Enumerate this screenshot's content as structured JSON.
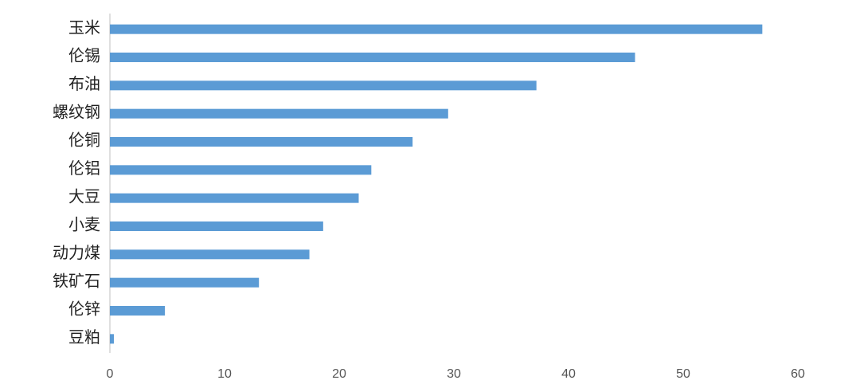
{
  "chart_data": {
    "type": "bar",
    "orientation": "horizontal",
    "categories": [
      "玉米",
      "伦锡",
      "布油",
      "螺纹钢",
      "伦铜",
      "伦铝",
      "大豆",
      "小麦",
      "动力煤",
      "铁矿石",
      "伦锌",
      "豆粕"
    ],
    "values": [
      56.9,
      45.8,
      37.2,
      29.5,
      26.4,
      22.8,
      21.7,
      18.6,
      17.4,
      13.0,
      4.8,
      0.35
    ],
    "color": "#5b9bd5",
    "xlim": [
      0,
      60
    ],
    "xticks": [
      0,
      10,
      20,
      30,
      40,
      50,
      60
    ],
    "grid": false
  }
}
